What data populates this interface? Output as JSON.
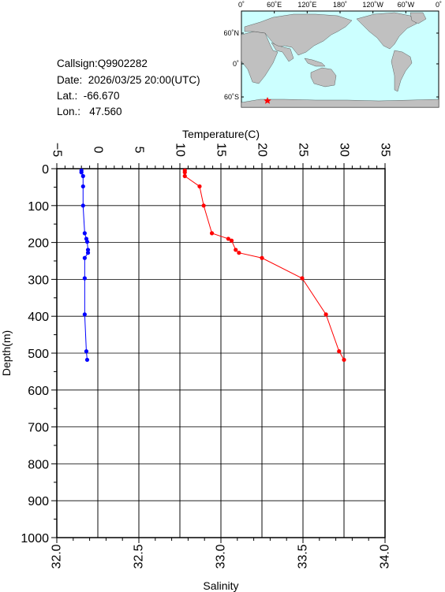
{
  "header": {
    "callsign": "Callsign:Q9902282",
    "date": "Date:  2026/03/25 20:00(UTC)",
    "lat": "Lat.:  -66.670",
    "lon": "Lon.:   47.560"
  },
  "map": {
    "top_labels": [
      "0˚",
      "60˚E",
      "120˚E",
      "180˚",
      "120˚W",
      "60˚W",
      "0˚"
    ],
    "lat_labels": [
      "60˚N",
      "0˚",
      "60˚S"
    ],
    "ocean_color": "#ccffff",
    "land_color": "#c0c0c0",
    "marker_color": "#ff0000"
  },
  "chart_data": {
    "type": "line",
    "xlabel_top": "Temperature(C)",
    "xlabel_bottom": "Salinity",
    "ylabel": "Depth(m)",
    "temperature_ticks": [
      "−5",
      "0",
      "5",
      "10",
      "15",
      "20",
      "25",
      "30",
      "35"
    ],
    "salinity_ticks": [
      "32.0",
      "32.5",
      "33.0",
      "33.5",
      "34.0"
    ],
    "depth_ticks": [
      "0",
      "100",
      "200",
      "300",
      "400",
      "500",
      "600",
      "700",
      "800",
      "900",
      "1000"
    ],
    "temperature_range": [
      -5,
      35
    ],
    "salinity_range": [
      32.0,
      34.0
    ],
    "depth_range": [
      0,
      1000
    ],
    "grid": true,
    "series": [
      {
        "color": "#ff0000",
        "axis": "temperature",
        "points": [
          {
            "depth": 5,
            "value": 10.6
          },
          {
            "depth": 10,
            "value": 10.6
          },
          {
            "depth": 20,
            "value": 10.6
          },
          {
            "depth": 48,
            "value": 12.4
          },
          {
            "depth": 100,
            "value": 12.9
          },
          {
            "depth": 175,
            "value": 13.9
          },
          {
            "depth": 190,
            "value": 15.9
          },
          {
            "depth": 195,
            "value": 16.3
          },
          {
            "depth": 220,
            "value": 16.8
          },
          {
            "depth": 228,
            "value": 17.2
          },
          {
            "depth": 242,
            "value": 20.0
          },
          {
            "depth": 297,
            "value": 24.9
          },
          {
            "depth": 395,
            "value": 27.8
          },
          {
            "depth": 495,
            "value": 29.4
          },
          {
            "depth": 518,
            "value": 30.0
          }
        ]
      },
      {
        "color": "#0000ff",
        "axis": "salinity",
        "points": [
          {
            "depth": 5,
            "value": 32.15
          },
          {
            "depth": 10,
            "value": 32.15
          },
          {
            "depth": 20,
            "value": 32.16
          },
          {
            "depth": 48,
            "value": 32.16
          },
          {
            "depth": 100,
            "value": 32.16
          },
          {
            "depth": 175,
            "value": 32.17
          },
          {
            "depth": 190,
            "value": 32.18
          },
          {
            "depth": 198,
            "value": 32.185
          },
          {
            "depth": 220,
            "value": 32.19
          },
          {
            "depth": 228,
            "value": 32.19
          },
          {
            "depth": 242,
            "value": 32.17
          },
          {
            "depth": 297,
            "value": 32.17
          },
          {
            "depth": 395,
            "value": 32.17
          },
          {
            "depth": 495,
            "value": 32.18
          },
          {
            "depth": 518,
            "value": 32.185
          }
        ]
      }
    ]
  }
}
